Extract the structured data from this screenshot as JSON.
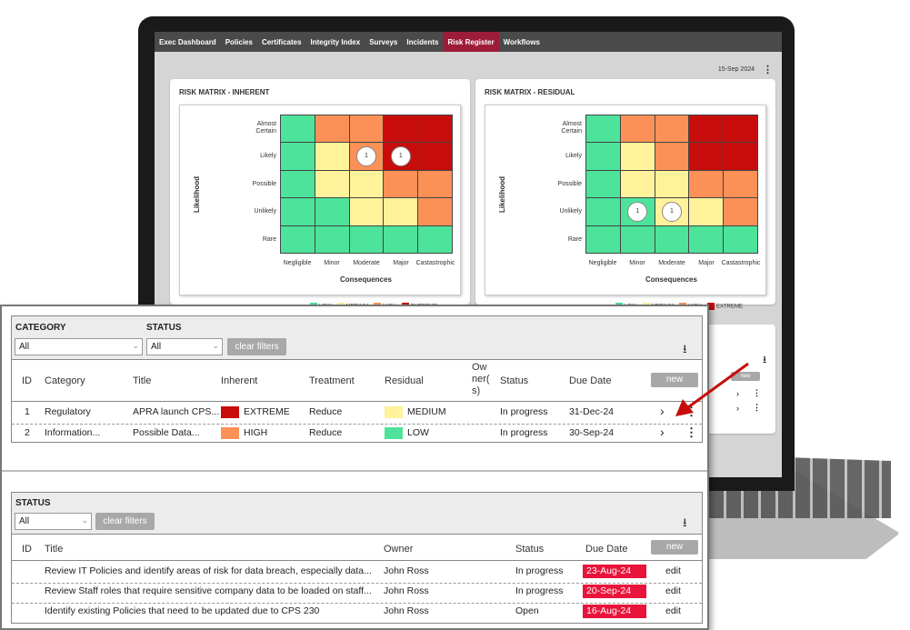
{
  "nav": [
    "Exec Dashboard",
    "Policies",
    "Certificates",
    "Integrity Index",
    "Surveys",
    "Incidents",
    "Risk Register",
    "Workflows"
  ],
  "active_tab": "Risk Register",
  "date": "15-Sep 2024",
  "matrix_inherent": {
    "title": "RISK MATRIX  - INHERENT",
    "y_title": "Likelihood",
    "x_title": "Consequences",
    "likelihood": [
      "Almost\nCertain",
      "Likely",
      "Possible",
      "Unlikely",
      "Rare"
    ],
    "consequences": [
      "Negligible",
      "Minor",
      "Moderate",
      "Major",
      "Castastrophic"
    ],
    "colors": [
      [
        "g",
        "o",
        "o",
        "r",
        "r"
      ],
      [
        "g",
        "y",
        "o",
        "r",
        "r"
      ],
      [
        "g",
        "y",
        "y",
        "o",
        "o"
      ],
      [
        "g",
        "g",
        "y",
        "y",
        "o"
      ],
      [
        "g",
        "g",
        "g",
        "g",
        "g"
      ]
    ],
    "counts": [
      {
        "row": 1,
        "col": 2,
        "value": "1"
      },
      {
        "row": 1,
        "col": 3,
        "value": "1"
      }
    ]
  },
  "matrix_residual": {
    "title": "RISK MATRIX - RESIDUAL",
    "y_title": "Likelihood",
    "x_title": "Consequences",
    "likelihood": [
      "Almost\nCertain",
      "Likely",
      "Possible",
      "Unlikely",
      "Rare"
    ],
    "consequences": [
      "Negligible",
      "Minor",
      "Moderate",
      "Major",
      "Castastrophic"
    ],
    "colors": [
      [
        "g",
        "o",
        "o",
        "r",
        "r"
      ],
      [
        "g",
        "y",
        "o",
        "r",
        "r"
      ],
      [
        "g",
        "y",
        "y",
        "o",
        "o"
      ],
      [
        "g",
        "g",
        "y",
        "y",
        "o"
      ],
      [
        "g",
        "g",
        "g",
        "g",
        "g"
      ]
    ],
    "counts": [
      {
        "row": 3,
        "col": 1,
        "value": "1"
      },
      {
        "row": 3,
        "col": 2,
        "value": "1"
      }
    ]
  },
  "legend": [
    {
      "label": "LOW",
      "color": "#4de39a"
    },
    {
      "label": "MEDIUM",
      "color": "#fff29a"
    },
    {
      "label": "HIGH",
      "color": "#fb9157"
    },
    {
      "label": "EXTREME",
      "color": "#c80c0c"
    }
  ],
  "colors": {
    "low": "#4de39a",
    "medium": "#fff29a",
    "high": "#fb9157",
    "extreme": "#c80c0c",
    "accent": "#9c1c3a",
    "due_red": "#e8143c"
  },
  "risks": {
    "filter_category_label": "CATEGORY",
    "filter_status_label": "STATUS",
    "category_value": "All",
    "status_value": "All",
    "clear_filters": "clear filters",
    "new_label": "new",
    "headers": {
      "id": "ID",
      "category": "Category",
      "title": "Title",
      "inherent": "Inherent",
      "treatment": "Treatment",
      "residual": "Residual",
      "owner": "Ow\nner(\ns)",
      "status": "Status",
      "due": "Due Date"
    },
    "rows": [
      {
        "id": "1",
        "category": "Regulatory",
        "title": "APRA launch CPS...",
        "inherent": "EXTREME",
        "inherent_color": "#c80c0c",
        "treatment": "Reduce",
        "residual": "MEDIUM",
        "residual_color": "#fff29a",
        "status": "In progress",
        "due": "31-Dec-24",
        "chevron": "›"
      },
      {
        "id": "2",
        "category": "Information...",
        "title": "Possible Data...",
        "inherent": "HIGH",
        "inherent_color": "#fb9157",
        "treatment": "Reduce",
        "residual": "LOW",
        "residual_color": "#4de39a",
        "status": "In progress",
        "due": "30-Sep-24",
        "chevron": "›"
      }
    ]
  },
  "actions": {
    "filter_status_label": "STATUS",
    "status_value": "All",
    "clear_filters": "clear filters",
    "new_label": "new",
    "headers": {
      "id": "ID",
      "title": "Title",
      "owner": "Owner",
      "status": "Status",
      "due": "Due Date"
    },
    "rows": [
      {
        "title": "Review IT Policies and identify areas of risk for data breach, especially data...",
        "owner": "John Ross",
        "status": "In progress",
        "due": "23-Aug-24",
        "edit": "edit"
      },
      {
        "title": "Review Staff roles that require sensitive company data to be loaded on staff...",
        "owner": "John Ross",
        "status": "In progress",
        "due": "20-Sep-24",
        "edit": "edit"
      },
      {
        "title": "Identify existing Policies that need to be updated due to CPS 230",
        "owner": "John Ross",
        "status": "Open",
        "due": "16-Aug-24",
        "edit": "edit"
      }
    ]
  }
}
